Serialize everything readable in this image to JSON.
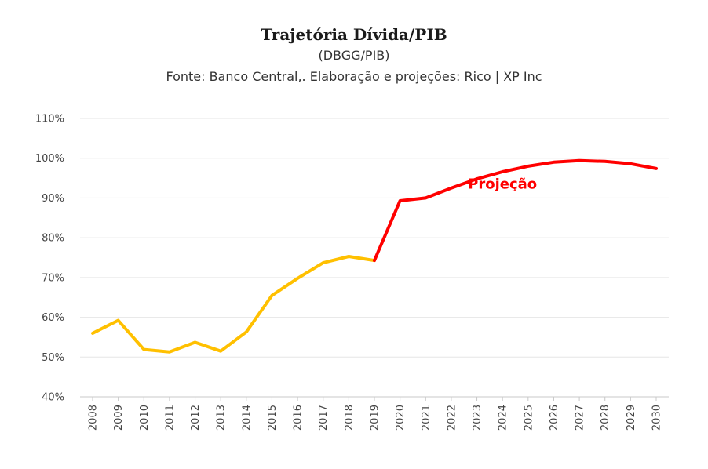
{
  "chart_data": {
    "type": "line",
    "title": "Trajetória Dívida/PIB",
    "subtitle": "(DBGG/PIB)",
    "source": "Fonte: Banco Central,. Elaboração e projeções: Rico | XP Inc",
    "x": [
      "2008",
      "2009",
      "2010",
      "2011",
      "2012",
      "2013",
      "2014",
      "2015",
      "2016",
      "2017",
      "2018",
      "2019",
      "2020",
      "2021",
      "2022",
      "2023",
      "2024",
      "2025",
      "2026",
      "2027",
      "2028",
      "2029",
      "2030"
    ],
    "series": [
      {
        "name": "",
        "color": "#FFC000",
        "x": [
          "2008",
          "2009",
          "2010",
          "2011",
          "2012",
          "2013",
          "2014",
          "2015",
          "2016",
          "2017",
          "2018",
          "2019"
        ],
        "values": [
          56.0,
          59.2,
          51.9,
          51.3,
          53.7,
          51.5,
          56.3,
          65.5,
          69.8,
          73.7,
          75.3,
          74.3
        ]
      },
      {
        "name": "",
        "color": "#FF0000",
        "x": [
          "2019",
          "2020",
          "2021",
          "2022",
          "2023",
          "2024",
          "2025",
          "2026",
          "2027",
          "2028",
          "2029",
          "2030"
        ],
        "values": [
          74.3,
          89.3,
          90.0,
          92.5,
          94.8,
          96.6,
          98.0,
          99.0,
          99.4,
          99.2,
          98.6,
          97.4
        ]
      }
    ],
    "yticks": [
      "40%",
      "50%",
      "60%",
      "70%",
      "80%",
      "90%",
      "100%",
      "110%"
    ],
    "ylim": [
      40,
      110
    ],
    "grid": true,
    "annotation": {
      "text": "Projeção",
      "color": "#FF0000",
      "x": "2024",
      "y": 93.5
    }
  }
}
